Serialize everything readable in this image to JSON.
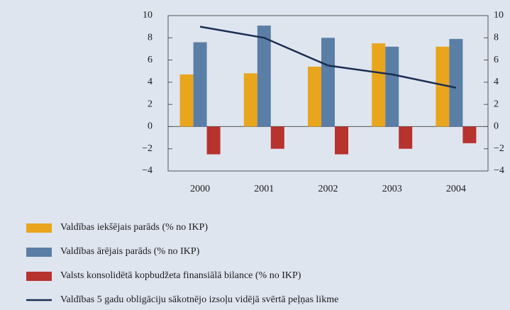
{
  "chart_data": {
    "type": "bar",
    "categories": [
      "2000",
      "2001",
      "2002",
      "2003",
      "2004"
    ],
    "series": [
      {
        "name": "Valdības iekšējais parāds (% no IKP)",
        "color": "#e9a51c",
        "values": [
          4.7,
          4.8,
          5.4,
          7.5,
          7.2
        ]
      },
      {
        "name": "Valdības ārējais parāds (% no IKP)",
        "color": "#5a7ea6",
        "values": [
          7.6,
          9.1,
          8.0,
          7.2,
          7.9
        ]
      },
      {
        "name": "Valsts konsolidētā kopbudžeta finansiālā bilance (% no IKP)",
        "color": "#b7332e",
        "values": [
          -2.5,
          -2.0,
          -2.5,
          -2.0,
          -1.5
        ]
      },
      {
        "name": "Valdības 5 gadu obligāciju sākotnējo izsoļu vidējā svērtā peļņas likme",
        "color": "#1b2d52",
        "type": "line",
        "axis": "y2",
        "values": [
          9.0,
          8.0,
          5.5,
          4.7,
          3.5
        ]
      }
    ],
    "ylim": [
      -4,
      10
    ],
    "yticks": [
      {
        "value": -4,
        "label": "−4"
      },
      {
        "value": -2,
        "label": "−2"
      },
      0,
      2,
      4,
      6,
      8,
      10
    ],
    "y2lim": [
      -4,
      10
    ],
    "y2ticks": [
      {
        "value": -4,
        "label": "−4"
      },
      {
        "value": -2,
        "label": "−2"
      },
      0,
      2,
      4,
      6,
      8,
      10
    ]
  }
}
